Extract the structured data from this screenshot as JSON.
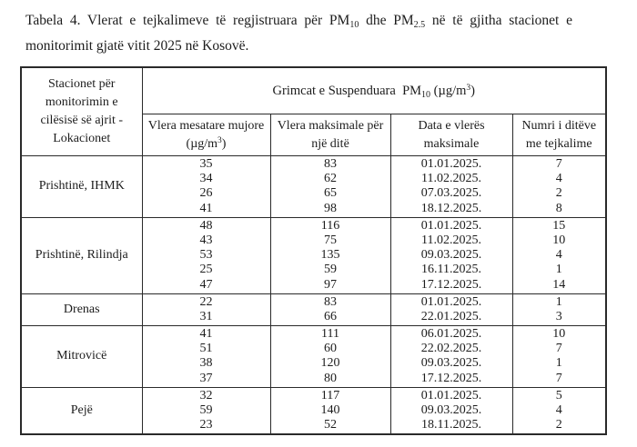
{
  "caption": {
    "part_a": "Tabela 4. Vlerat e tejkalimeve të regjistruara për PM",
    "pm10_sub": "10",
    "part_b": " dhe PM",
    "pm25_sub": "2.5",
    "part_c": " në të gjitha stacionet e",
    "line2": "monitorimit gjatë vitit 2025 në Kosovë."
  },
  "table": {
    "station_header": "Stacionet për monitorimin e cilësisë së ajrit - Lokacionet",
    "group_header": {
      "a": "Grimcat e Suspenduara  PM",
      "sub": "10",
      "b": " (µg/m",
      "sup": "3",
      "c": ")"
    },
    "col_mean": {
      "a": "Vlera mesatare mujore (µg/m",
      "sup": "3",
      "b": ")"
    },
    "col_max": "Vlera maksimale për një ditë",
    "col_date": "Data e vlerës maksimale",
    "col_days": "Numri i ditëve me tejkalime",
    "rows": [
      {
        "station": "Prishtinë, IHMK",
        "mean": [
          "35",
          "34",
          "26",
          "41"
        ],
        "max": [
          "83",
          "62",
          "65",
          "98"
        ],
        "dates": [
          "01.01.2025.",
          "11.02.2025.",
          "07.03.2025.",
          "18.12.2025."
        ],
        "days": [
          "7",
          "4",
          "2",
          "8"
        ]
      },
      {
        "station": "Prishtinë, Rilindja",
        "mean": [
          "48",
          "43",
          "53",
          "25",
          "47"
        ],
        "max": [
          "116",
          "75",
          "135",
          "59",
          "97"
        ],
        "dates": [
          "01.01.2025.",
          "11.02.2025.",
          "09.03.2025.",
          "16.11.2025.",
          "17.12.2025."
        ],
        "days": [
          "15",
          "10",
          "4",
          "1",
          "14"
        ]
      },
      {
        "station": "Drenas",
        "mean": [
          "22",
          "31"
        ],
        "max": [
          "83",
          "66"
        ],
        "dates": [
          "01.01.2025.",
          "22.01.2025."
        ],
        "days": [
          "1",
          "3"
        ]
      },
      {
        "station": "Mitrovicë",
        "mean": [
          "41",
          "51",
          "38",
          "37"
        ],
        "max": [
          "111",
          "60",
          "120",
          "80"
        ],
        "dates": [
          "06.01.2025.",
          "22.02.2025.",
          "09.03.2025.",
          "17.12.2025."
        ],
        "days": [
          "10",
          "7",
          "1",
          "7"
        ]
      },
      {
        "station": "Pejë",
        "mean": [
          "32",
          "59",
          "23"
        ],
        "max": [
          "117",
          "140",
          "52"
        ],
        "dates": [
          "01.01.2025.",
          "09.03.2025.",
          "18.11.2025."
        ],
        "days": [
          "5",
          "4",
          "2"
        ]
      }
    ]
  }
}
